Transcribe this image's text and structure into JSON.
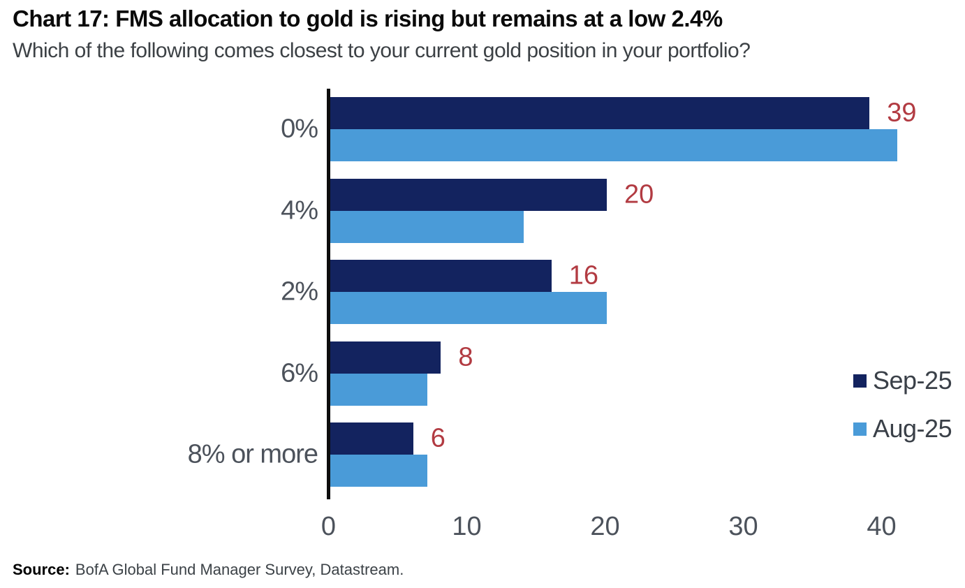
{
  "header": {
    "title": "Chart 17: FMS allocation to gold is rising but remains at a low 2.4%",
    "subtitle": "Which of the following comes closest to your current gold position in your portfolio?"
  },
  "chart_data": {
    "type": "bar",
    "orientation": "horizontal",
    "title": "Chart 17: FMS allocation to gold is rising but remains at a low 2.4%",
    "subtitle": "Which of the following comes closest to your current gold position in your portfolio?",
    "categories": [
      "0%",
      "4%",
      "2%",
      "6%",
      "8% or more"
    ],
    "series": [
      {
        "name": "Sep-25",
        "color": "#13235f",
        "values": [
          39,
          20,
          16,
          8,
          6
        ]
      },
      {
        "name": "Aug-25",
        "color": "#4a9bd8",
        "values": [
          41,
          14,
          20,
          7,
          7
        ]
      }
    ],
    "data_labels": {
      "series": "Sep-25",
      "values": [
        "39",
        "20",
        "16",
        "8",
        "6"
      ],
      "color": "#b23b42"
    },
    "x_axis": {
      "min": 0,
      "max": 45,
      "ticks": [
        0,
        10,
        20,
        30,
        40
      ]
    },
    "grid": false,
    "legend": {
      "position": "center-right",
      "entries": [
        "Sep-25",
        "Aug-25"
      ]
    }
  },
  "footer": {
    "source_label": "Source:",
    "source_text": "BofA Global Fund Manager Survey, Datastream."
  }
}
